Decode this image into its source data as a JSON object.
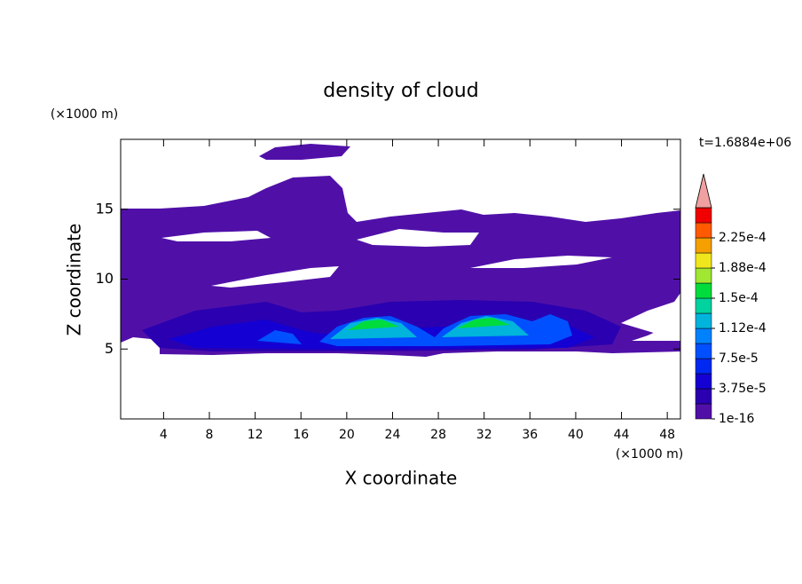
{
  "chart_data": {
    "type": "contour",
    "title": "density of cloud",
    "x_label": "X coordinate",
    "y_label": "Z coordinate",
    "x_unit": "(×1000 m)",
    "y_unit": "(×1000 m)",
    "time_label": "t=1.6884e+06",
    "xlim": [
      0.25,
      49.15
    ],
    "ylim": [
      0,
      20
    ],
    "xticks": [
      4,
      8,
      12,
      16,
      20,
      24,
      28,
      32,
      36,
      40,
      44,
      48
    ],
    "yticks": [
      5,
      10,
      15
    ],
    "colorbar_levels": [
      {
        "value": 1e-16,
        "label": "1e-16"
      },
      {
        "value": 3.75e-05,
        "label": "3.75e-5"
      },
      {
        "value": 7.5e-05,
        "label": "7.5e-5"
      },
      {
        "value": 0.000112,
        "label": "1.12e-4"
      },
      {
        "value": 0.00015,
        "label": "1.5e-4"
      },
      {
        "value": 0.000188,
        "label": "1.88e-4"
      },
      {
        "value": 0.000225,
        "label": "2.25e-4"
      }
    ],
    "colorbar_colors": [
      "#5010a8",
      "#2a00b0",
      "#1400d2",
      "#0028f0",
      "#0050ff",
      "#0082ff",
      "#00b4dc",
      "#00d2a0",
      "#00dc3c",
      "#a0e632",
      "#f0e61e",
      "#f5a000",
      "#ff5a00",
      "#f00000"
    ],
    "extend_color": "#f0a0a0"
  }
}
